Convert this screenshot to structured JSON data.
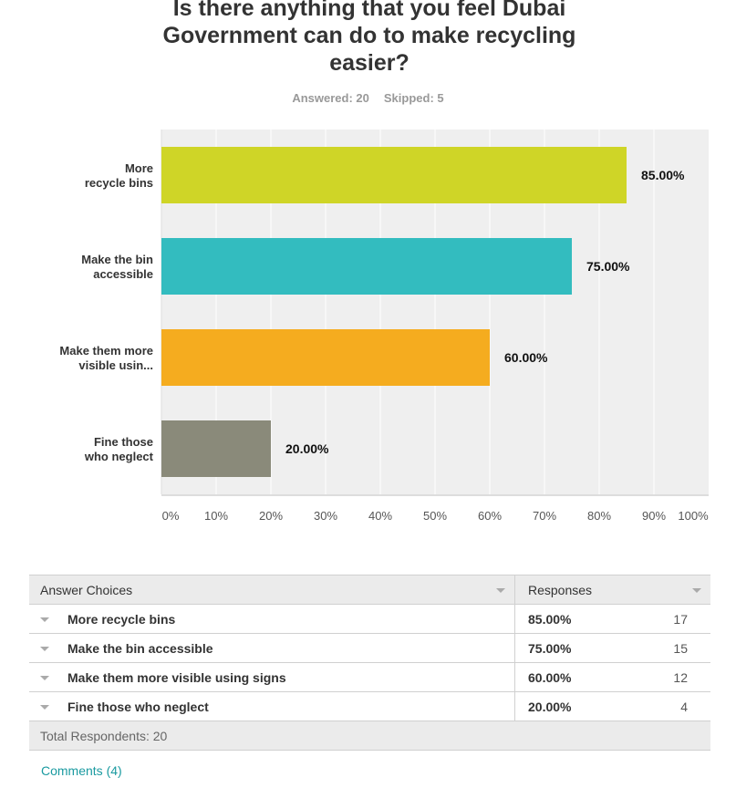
{
  "chart_data": {
    "type": "bar",
    "title": "Is there anything that you feel Dubai Government can do to make recycling easier?",
    "answered_label": "Answered: 20",
    "skipped_label": "Skipped: 5",
    "categories": [
      "More recycle bins",
      "Make the bin accessible",
      "Make them more visible usin...",
      "Fine those who neglect"
    ],
    "values": [
      85,
      75,
      60,
      20
    ],
    "data_labels": [
      "85.00%",
      "75.00%",
      "60.00%",
      "20.00%"
    ],
    "colors": [
      "#cfd527",
      "#33bcbf",
      "#f5ac1f",
      "#8a8a7a"
    ],
    "xlim": [
      0,
      100
    ],
    "ticks": [
      "0%",
      "10%",
      "20%",
      "30%",
      "40%",
      "50%",
      "60%",
      "70%",
      "80%",
      "90%",
      "100%"
    ],
    "grid": true
  },
  "table": {
    "headers": [
      "Answer Choices",
      "Responses"
    ],
    "rows": [
      {
        "choice": "More recycle bins",
        "percent": "85.00%",
        "count": "17"
      },
      {
        "choice": "Make the bin accessible",
        "percent": "75.00%",
        "count": "15"
      },
      {
        "choice": "Make them more visible using signs",
        "percent": "60.00%",
        "count": "12"
      },
      {
        "choice": "Fine those who neglect",
        "percent": "20.00%",
        "count": "4"
      }
    ],
    "total": "Total Respondents: 20"
  },
  "comments": "Comments (4)"
}
